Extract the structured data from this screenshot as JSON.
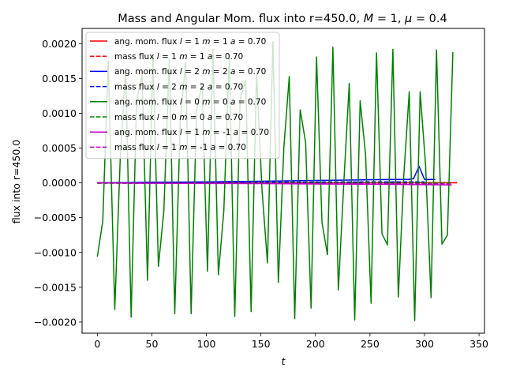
{
  "chart_data": {
    "type": "line",
    "title": "Mass and Angular Mom. flux into r=450.0, M = 1, μ = 0.4",
    "title_parts": {
      "prefix": "Mass and Angular Mom. flux into r=450.0, ",
      "m_sym": "M",
      "m_val": " = 1, ",
      "mu_sym": "μ",
      "mu_val": " = 0.4"
    },
    "xlabel": "t",
    "ylabel": "flux into r=450.0",
    "xlim": [
      -14,
      355
    ],
    "ylim": [
      -0.00216,
      0.00222
    ],
    "xticks": [
      0,
      50,
      100,
      150,
      200,
      250,
      300,
      350
    ],
    "xtick_labels": [
      "0",
      "50",
      "100",
      "150",
      "200",
      "250",
      "300",
      "350"
    ],
    "yticks": [
      -0.002,
      -0.0015,
      -0.001,
      -0.0005,
      0,
      0.0005,
      0.001,
      0.0015,
      0.002
    ],
    "ytick_labels": [
      "−0.0020",
      "−0.0015",
      "−0.0010",
      "−0.0005",
      "0.0000",
      "0.0005",
      "0.0010",
      "0.0015",
      "0.0020"
    ],
    "legend_position": "upper-left",
    "series": [
      {
        "name": "ang. mom. flux l = 1 m = 1 a = 0.70",
        "label_parts": [
          "ang. mom. flux ",
          "l",
          " = 1 ",
          "m",
          " = 1 ",
          "a",
          " = 0.70"
        ],
        "color": "#ff0000",
        "style": "solid",
        "x": [
          0,
          50,
          100,
          150,
          200,
          250,
          300,
          330
        ],
        "y": [
          1e-06,
          2e-06,
          2e-06,
          2e-06,
          2e-06,
          2e-06,
          2e-06,
          2e-06
        ]
      },
      {
        "name": "mass flux l = 1 m = 1 a = 0.70",
        "label_parts": [
          "mass flux ",
          "l",
          " = 1 ",
          "m",
          " = 1 ",
          "a",
          " = 0.70"
        ],
        "color": "#ff0000",
        "style": "dashed",
        "x": [
          0,
          50,
          100,
          150,
          200,
          250,
          300,
          330
        ],
        "y": [
          2e-06,
          3e-06,
          3e-06,
          3e-06,
          3e-06,
          3e-06,
          3e-06,
          3e-06
        ]
      },
      {
        "name": "ang. mom. flux l = 2 m = 2 a = 0.70",
        "label_parts": [
          "ang. mom. flux ",
          "l",
          " = 2 ",
          "m",
          " = 2 ",
          "a",
          " = 0.70"
        ],
        "color": "#0000ff",
        "style": "solid",
        "x": [
          0,
          25,
          50,
          75,
          100,
          125,
          150,
          175,
          200,
          225,
          250,
          275,
          285,
          290,
          295,
          300,
          305,
          310
        ],
        "y": [
          0.0,
          5e-06,
          1e-05,
          1.2e-05,
          1.5e-05,
          2e-05,
          2.5e-05,
          3e-05,
          3.5e-05,
          4e-05,
          4.5e-05,
          5e-05,
          5e-05,
          6e-05,
          0.00024,
          5e-05,
          5e-05,
          5e-05
        ]
      },
      {
        "name": "mass flux l = 2 m = 2 a = 0.70",
        "label_parts": [
          "mass flux ",
          "l",
          " = 2 ",
          "m",
          " = 2 ",
          "a",
          " = 0.70"
        ],
        "color": "#0000ff",
        "style": "dashed",
        "x": [
          0,
          50,
          100,
          150,
          200,
          250,
          300
        ],
        "y": [
          0.0,
          5e-06,
          8e-06,
          1e-05,
          1.2e-05,
          1.4e-05,
          1.5e-05
        ]
      },
      {
        "name": "ang. mom. flux l = 0 m = 0 a = 0.70",
        "label_parts": [
          "ang. mom. flux ",
          "l",
          " = 0 ",
          "m",
          " = 0 ",
          "a",
          " = 0.70"
        ],
        "color": "#008000",
        "style": "solid",
        "x": [
          0,
          5,
          10,
          16,
          21,
          26,
          31,
          36,
          41,
          46,
          51,
          56,
          61,
          66,
          71,
          76,
          81,
          86,
          91,
          96,
          101,
          106,
          111,
          116,
          121,
          126,
          131,
          136,
          141,
          146,
          151,
          156,
          161,
          166,
          171,
          176,
          181,
          186,
          191,
          196,
          201,
          206,
          211,
          216,
          221,
          226,
          231,
          236,
          241,
          246,
          251,
          256,
          261,
          266,
          271,
          276,
          281,
          286,
          291,
          296,
          301,
          306,
          311,
          316,
          321,
          326
        ],
        "y": [
          -0.00106,
          -0.00055,
          0.00175,
          -0.00182,
          0.00035,
          0.00165,
          -0.00193,
          0.00118,
          0.00155,
          -0.0014,
          0.00182,
          -0.0012,
          -0.0004,
          0.00178,
          -0.00188,
          0.00088,
          0.00173,
          -0.00188,
          0.00105,
          0.00142,
          -0.00127,
          0.00192,
          -0.00132,
          -0.0004,
          0.00182,
          -0.00192,
          0.0012,
          0.00148,
          -0.00185,
          0.00158,
          -0.0001,
          -0.00115,
          0.00203,
          -0.00143,
          0.0005,
          0.00153,
          -0.00195,
          0.00105,
          0.00058,
          -0.0018,
          0.00181,
          -0.00057,
          -0.00103,
          0.00195,
          -0.00154,
          0.0,
          0.00143,
          -0.00197,
          0.00118,
          0.0004,
          -0.00173,
          0.00187,
          -0.00073,
          -0.00089,
          0.00192,
          -0.00164,
          0.0001,
          0.00131,
          -0.00198,
          0.00131,
          0.00025,
          -0.00165,
          0.00191,
          -0.00088,
          -0.00075,
          0.00188
        ]
      },
      {
        "name": "mass flux l = 0 m = 0 a = 0.70",
        "label_parts": [
          "mass flux ",
          "l",
          " = 0 ",
          "m",
          " = 0 ",
          "a",
          " = 0.70"
        ],
        "color": "#008000",
        "style": "dashed",
        "x": [
          0,
          50,
          100,
          150,
          200,
          250,
          300,
          325
        ],
        "y": [
          -5e-06,
          -5e-06,
          -5e-06,
          -5e-06,
          -5e-06,
          -5e-06,
          -5e-06,
          -5e-06
        ]
      },
      {
        "name": "ang. mom. flux l = 1 m = -1 a = 0.70",
        "label_parts": [
          "ang. mom. flux ",
          "l",
          " = 1 ",
          "m",
          " = -1 ",
          "a",
          " = 0.70"
        ],
        "color": "#bf00bf",
        "style": "solid",
        "x": [
          0,
          50,
          100,
          150,
          200,
          250,
          300,
          325
        ],
        "y": [
          0.0,
          -5e-06,
          -8e-06,
          -1e-05,
          -1.5e-05,
          -2e-05,
          -2.5e-05,
          -3e-05
        ]
      },
      {
        "name": "mass flux l = 1 m = -1 a = 0.70",
        "label_parts": [
          "mass flux ",
          "l",
          " = 1 ",
          "m",
          " = -1 ",
          "a",
          " = 0.70"
        ],
        "color": "#bf00bf",
        "style": "dashed",
        "x": [
          0,
          50,
          100,
          150,
          200,
          250,
          300,
          325
        ],
        "y": [
          0.0,
          -4e-06,
          -6e-06,
          -8e-06,
          -1e-05,
          -1.2e-05,
          -1.4e-05,
          -1.5e-05
        ]
      }
    ]
  }
}
